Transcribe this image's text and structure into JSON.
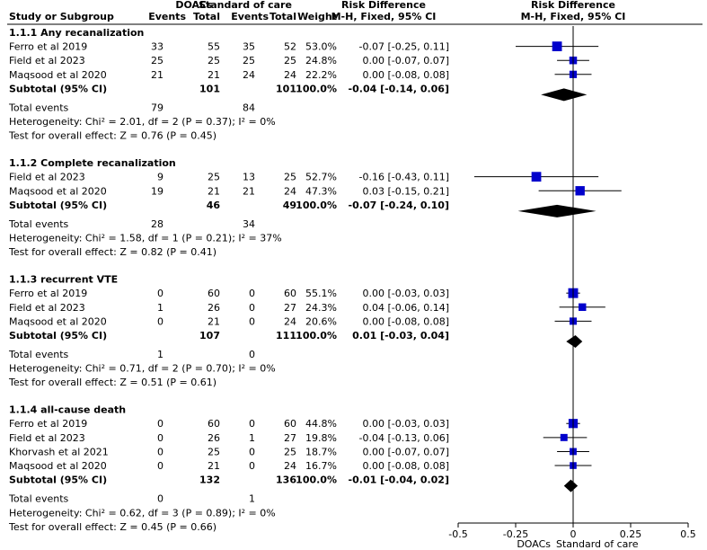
{
  "header": {
    "study": "Study or Subgroup",
    "group1": "DOACs",
    "group2": "Standard of care",
    "events": "Events",
    "total": "Total",
    "weight": "Weight",
    "rd_title": "Risk Difference",
    "rd_method": "M-H, Fixed, 95% CI",
    "plot_title": "Risk Difference",
    "plot_method": "M-H, Fixed, 95% CI"
  },
  "chart_data": {
    "type": "forest",
    "measure": "Risk Difference",
    "xlim": [
      -0.5,
      0.5
    ],
    "ticks": [
      "-0.5",
      "-0.25",
      "0",
      "0.25",
      "0.5"
    ],
    "tick_values": [
      -0.5,
      -0.25,
      0,
      0.25,
      0.5
    ],
    "favours_left": "DOACs",
    "favours_right": "Standard of care",
    "subgroups": [
      {
        "title": "1.1.1 Any recanalization",
        "studies": [
          {
            "name": "Ferro et al 2019",
            "e1": "33",
            "t1": "55",
            "e2": "35",
            "t2": "52",
            "weight": "53.0%",
            "ci": "-0.07 [-0.25, 0.11]",
            "est": -0.07,
            "lo": -0.25,
            "hi": 0.11,
            "w": 53.0
          },
          {
            "name": "Field et al 2023",
            "e1": "25",
            "t1": "25",
            "e2": "25",
            "t2": "25",
            "weight": "24.8%",
            "ci": "0.00 [-0.07, 0.07]",
            "est": 0.0,
            "lo": -0.07,
            "hi": 0.07,
            "w": 24.8
          },
          {
            "name": "Maqsood et al 2020",
            "e1": "21",
            "t1": "21",
            "e2": "24",
            "t2": "24",
            "weight": "22.2%",
            "ci": "0.00 [-0.08, 0.08]",
            "est": 0.0,
            "lo": -0.08,
            "hi": 0.08,
            "w": 22.2
          }
        ],
        "subtotal": {
          "label": "Subtotal (95% CI)",
          "t1": "101",
          "t2": "101",
          "weight": "100.0%",
          "ci": "-0.04 [-0.14, 0.06]",
          "est": -0.04,
          "lo": -0.14,
          "hi": 0.06
        },
        "total_events": {
          "label": "Total events",
          "e1": "79",
          "e2": "84"
        },
        "heterogeneity": "Heterogeneity: Chi² = 2.01, df = 2 (P = 0.37); I² = 0%",
        "overall": "Test for overall effect: Z = 0.76 (P = 0.45)"
      },
      {
        "title": "1.1.2 Complete recanalization",
        "studies": [
          {
            "name": "Field et al 2023",
            "e1": "9",
            "t1": "25",
            "e2": "13",
            "t2": "25",
            "weight": "52.7%",
            "ci": "-0.16 [-0.43, 0.11]",
            "est": -0.16,
            "lo": -0.43,
            "hi": 0.11,
            "w": 52.7
          },
          {
            "name": "Maqsood et al 2020",
            "e1": "19",
            "t1": "21",
            "e2": "21",
            "t2": "24",
            "weight": "47.3%",
            "ci": "0.03 [-0.15, 0.21]",
            "est": 0.03,
            "lo": -0.15,
            "hi": 0.21,
            "w": 47.3
          }
        ],
        "subtotal": {
          "label": "Subtotal (95% CI)",
          "t1": "46",
          "t2": "49",
          "weight": "100.0%",
          "ci": "-0.07 [-0.24, 0.10]",
          "est": -0.07,
          "lo": -0.24,
          "hi": 0.1
        },
        "total_events": {
          "label": "Total events",
          "e1": "28",
          "e2": "34"
        },
        "heterogeneity": "Heterogeneity: Chi² = 1.58, df = 1 (P = 0.21); I² = 37%",
        "overall": "Test for overall effect: Z = 0.82 (P = 0.41)"
      },
      {
        "title": "1.1.3 recurrent VTE",
        "studies": [
          {
            "name": "Ferro et al 2019",
            "e1": "0",
            "t1": "60",
            "e2": "0",
            "t2": "60",
            "weight": "55.1%",
            "ci": "0.00 [-0.03, 0.03]",
            "est": 0.0,
            "lo": -0.03,
            "hi": 0.03,
            "w": 55.1
          },
          {
            "name": "Field et al 2023",
            "e1": "1",
            "t1": "26",
            "e2": "0",
            "t2": "27",
            "weight": "24.3%",
            "ci": "0.04 [-0.06, 0.14]",
            "est": 0.04,
            "lo": -0.06,
            "hi": 0.14,
            "w": 24.3
          },
          {
            "name": "Maqsood et al 2020",
            "e1": "0",
            "t1": "21",
            "e2": "0",
            "t2": "24",
            "weight": "20.6%",
            "ci": "0.00 [-0.08, 0.08]",
            "est": 0.0,
            "lo": -0.08,
            "hi": 0.08,
            "w": 20.6
          }
        ],
        "subtotal": {
          "label": "Subtotal (95% CI)",
          "t1": "107",
          "t2": "111",
          "weight": "100.0%",
          "ci": "0.01 [-0.03, 0.04]",
          "est": 0.01,
          "lo": -0.03,
          "hi": 0.04
        },
        "total_events": {
          "label": "Total events",
          "e1": "1",
          "e2": "0"
        },
        "heterogeneity": "Heterogeneity: Chi² = 0.71, df = 2 (P = 0.70); I² = 0%",
        "overall": "Test for overall effect: Z = 0.51 (P = 0.61)"
      },
      {
        "title": "1.1.4 all-cause death",
        "studies": [
          {
            "name": "Ferro et al 2019",
            "e1": "0",
            "t1": "60",
            "e2": "0",
            "t2": "60",
            "weight": "44.8%",
            "ci": "0.00 [-0.03, 0.03]",
            "est": 0.0,
            "lo": -0.03,
            "hi": 0.03,
            "w": 44.8
          },
          {
            "name": "Field et al 2023",
            "e1": "0",
            "t1": "26",
            "e2": "1",
            "t2": "27",
            "weight": "19.8%",
            "ci": "-0.04 [-0.13, 0.06]",
            "est": -0.04,
            "lo": -0.13,
            "hi": 0.06,
            "w": 19.8
          },
          {
            "name": "Khorvash et al 2021",
            "e1": "0",
            "t1": "25",
            "e2": "0",
            "t2": "25",
            "weight": "18.7%",
            "ci": "0.00 [-0.07, 0.07]",
            "est": 0.0,
            "lo": -0.07,
            "hi": 0.07,
            "w": 18.7
          },
          {
            "name": "Maqsood et al 2020",
            "e1": "0",
            "t1": "21",
            "e2": "0",
            "t2": "24",
            "weight": "16.7%",
            "ci": "0.00 [-0.08, 0.08]",
            "est": 0.0,
            "lo": -0.08,
            "hi": 0.08,
            "w": 16.7
          }
        ],
        "subtotal": {
          "label": "Subtotal (95% CI)",
          "t1": "132",
          "t2": "136",
          "weight": "100.0%",
          "ci": "-0.01 [-0.04, 0.02]",
          "est": -0.01,
          "lo": -0.04,
          "hi": 0.02
        },
        "total_events": {
          "label": "Total events",
          "e1": "0",
          "e2": "1"
        },
        "heterogeneity": "Heterogeneity: Chi² = 0.62, df = 3 (P = 0.89); I² = 0%",
        "overall": "Test for overall effect: Z = 0.45 (P = 0.66)"
      }
    ]
  },
  "colors": {
    "marker": "#0000cc",
    "diamond": "#000000",
    "line": "#000000",
    "text": "#000000"
  }
}
